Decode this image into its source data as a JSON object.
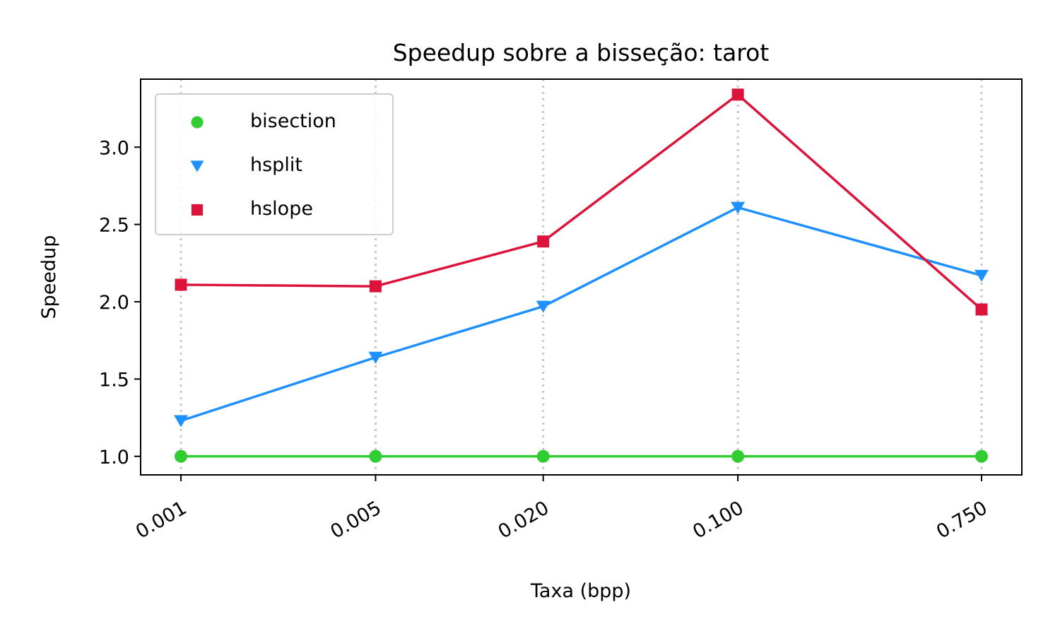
{
  "chart_data": {
    "type": "line",
    "title": "Speedup sobre a bisseção: tarot",
    "xlabel": "Taxa (bpp)",
    "ylabel": "Speedup",
    "categories": [
      "0.001",
      "0.005",
      "0.020",
      "0.100",
      "0.750"
    ],
    "x": [
      0.001,
      0.005,
      0.02,
      0.1,
      0.75
    ],
    "x_scale": "log",
    "ylim": [
      0.88,
      3.44
    ],
    "yticks": [
      "1.0",
      "1.5",
      "2.0",
      "2.5",
      "3.0"
    ],
    "grid": "vertical dotted at x ticks",
    "legend_position": "upper-left",
    "series": [
      {
        "name": "bisection",
        "color": "#32cd32",
        "marker": "circle",
        "values": [
          1.0,
          1.0,
          1.0,
          1.0,
          1.0
        ]
      },
      {
        "name": "hsplit",
        "color": "#1e90ff",
        "marker": "triangle-down",
        "values": [
          1.23,
          1.64,
          1.97,
          2.61,
          2.17
        ]
      },
      {
        "name": "hslope",
        "color": "#dc143c",
        "marker": "square",
        "values": [
          2.11,
          2.1,
          2.39,
          3.34,
          1.95
        ]
      }
    ]
  }
}
